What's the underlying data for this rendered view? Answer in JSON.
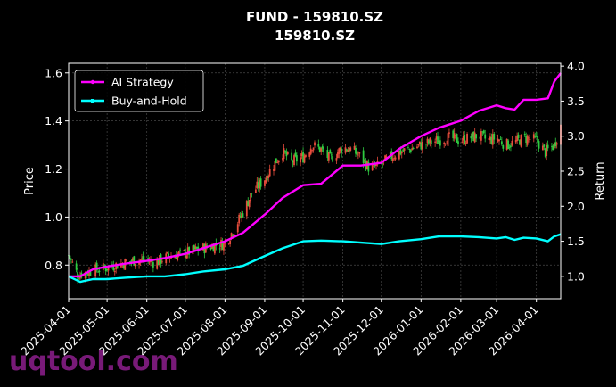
{
  "chart_data": {
    "type": "line",
    "title": "FUND - 159810.SZ",
    "subtitle": "159810.SZ",
    "xlabel": "",
    "ylabel_left": "Price",
    "ylabel_right": "Return",
    "x_range": [
      "2025-04-01",
      "2026-04-20"
    ],
    "ylim_left": [
      0.66,
      1.64
    ],
    "ylim_right": [
      0.68,
      4.04
    ],
    "x_ticks": [
      "2025-04-01",
      "2025-05-01",
      "2025-06-01",
      "2025-07-01",
      "2025-08-01",
      "2025-09-01",
      "2025-10-01",
      "2025-11-01",
      "2025-12-01",
      "2026-01-01",
      "2026-02-01",
      "2026-03-01",
      "2026-04-01"
    ],
    "y_ticks_left": [
      "0.8",
      "1.0",
      "1.2",
      "1.4",
      "1.6"
    ],
    "y_ticks_right": [
      "1.0",
      "1.5",
      "2.0",
      "2.5",
      "3.0",
      "3.5",
      "4.0"
    ],
    "grid": true,
    "legend_position": "top-left",
    "colors": {
      "up_candle": "#e74c3c",
      "down_candle": "#2ecc40",
      "strategy": "#ff00ff",
      "buyhold": "#00ffff",
      "background": "#000000",
      "text": "#ffffff"
    },
    "price_series": {
      "name": "159810.SZ price",
      "x": [
        "2025-04-01",
        "2025-04-08",
        "2025-04-15",
        "2025-04-22",
        "2025-05-01",
        "2025-05-08",
        "2025-05-15",
        "2025-05-22",
        "2025-06-01",
        "2025-06-08",
        "2025-06-15",
        "2025-06-22",
        "2025-07-01",
        "2025-07-08",
        "2025-07-15",
        "2025-07-22",
        "2025-08-01",
        "2025-08-08",
        "2025-08-15",
        "2025-08-22",
        "2025-09-01",
        "2025-09-08",
        "2025-09-15",
        "2025-09-22",
        "2025-10-01",
        "2025-10-08",
        "2025-10-15",
        "2025-10-22",
        "2025-11-01",
        "2025-11-08",
        "2025-11-15",
        "2025-11-22",
        "2025-12-01",
        "2025-12-08",
        "2025-12-15",
        "2025-12-22",
        "2026-01-01",
        "2026-01-08",
        "2026-01-15",
        "2026-01-22",
        "2026-02-01",
        "2026-02-08",
        "2026-02-15",
        "2026-02-22",
        "2026-03-01",
        "2026-03-08",
        "2026-03-15",
        "2026-03-22",
        "2026-04-01",
        "2026-04-08",
        "2026-04-15",
        "2026-04-20"
      ],
      "values": [
        0.84,
        0.76,
        0.77,
        0.78,
        0.79,
        0.8,
        0.81,
        0.82,
        0.82,
        0.81,
        0.83,
        0.84,
        0.85,
        0.86,
        0.87,
        0.88,
        0.89,
        0.95,
        1.02,
        1.1,
        1.16,
        1.22,
        1.27,
        1.23,
        1.25,
        1.3,
        1.28,
        1.24,
        1.29,
        1.28,
        1.25,
        1.2,
        1.22,
        1.25,
        1.27,
        1.28,
        1.3,
        1.31,
        1.32,
        1.33,
        1.32,
        1.33,
        1.34,
        1.32,
        1.33,
        1.3,
        1.31,
        1.33,
        1.32,
        1.27,
        1.3,
        1.38
      ]
    },
    "series": [
      {
        "name": "AI Strategy",
        "x": [
          "2025-04-01",
          "2025-04-10",
          "2025-04-20",
          "2025-05-01",
          "2025-05-15",
          "2025-06-01",
          "2025-06-15",
          "2025-07-01",
          "2025-07-15",
          "2025-08-01",
          "2025-08-15",
          "2025-09-01",
          "2025-09-15",
          "2025-10-01",
          "2025-10-15",
          "2025-11-01",
          "2025-11-15",
          "2025-12-01",
          "2025-12-15",
          "2026-01-01",
          "2026-01-15",
          "2026-02-01",
          "2026-02-15",
          "2026-03-01",
          "2026-03-08",
          "2026-03-15",
          "2026-03-22",
          "2026-04-01",
          "2026-04-10",
          "2026-04-15",
          "2026-04-20"
        ],
        "values": [
          1.0,
          1.0,
          1.1,
          1.14,
          1.18,
          1.22,
          1.26,
          1.32,
          1.4,
          1.5,
          1.62,
          1.88,
          2.12,
          2.3,
          2.32,
          2.58,
          2.58,
          2.62,
          2.82,
          3.0,
          3.12,
          3.22,
          3.36,
          3.44,
          3.4,
          3.38,
          3.52,
          3.52,
          3.54,
          3.78,
          3.9
        ]
      },
      {
        "name": "Buy-and-Hold",
        "x": [
          "2025-04-01",
          "2025-04-10",
          "2025-04-20",
          "2025-05-01",
          "2025-05-15",
          "2025-06-01",
          "2025-06-15",
          "2025-07-01",
          "2025-07-15",
          "2025-08-01",
          "2025-08-15",
          "2025-09-01",
          "2025-09-15",
          "2025-10-01",
          "2025-10-15",
          "2025-11-01",
          "2025-11-15",
          "2025-12-01",
          "2025-12-15",
          "2026-01-01",
          "2026-01-15",
          "2026-02-01",
          "2026-02-15",
          "2026-03-01",
          "2026-03-08",
          "2026-03-15",
          "2026-03-22",
          "2026-04-01",
          "2026-04-10",
          "2026-04-15",
          "2026-04-20"
        ],
        "values": [
          1.0,
          0.92,
          0.96,
          0.96,
          0.98,
          1.0,
          1.0,
          1.03,
          1.07,
          1.1,
          1.15,
          1.29,
          1.4,
          1.5,
          1.51,
          1.5,
          1.48,
          1.46,
          1.5,
          1.53,
          1.57,
          1.57,
          1.56,
          1.54,
          1.56,
          1.52,
          1.55,
          1.54,
          1.5,
          1.57,
          1.6
        ]
      }
    ],
    "watermark": "uqtool.com"
  }
}
